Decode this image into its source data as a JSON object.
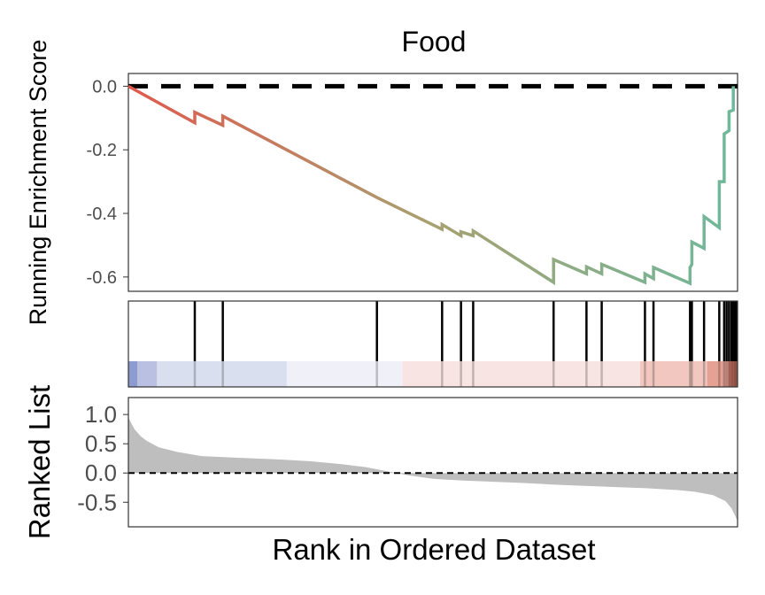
{
  "chart_data": {
    "type": "line",
    "title": "Food",
    "panels": {
      "enrichment": {
        "ylabel": "Running Enrichment Score",
        "ylim": [
          -0.645,
          0.04
        ],
        "yticks": [
          0.0,
          -0.2,
          -0.4,
          -0.6
        ],
        "ytick_labels": [
          "0.0",
          "-0.2",
          "-0.4",
          "-0.6"
        ],
        "reference_line_y": 0.0,
        "xlim": [
          0,
          1
        ],
        "series": [
          {
            "values": [
              [
                0.0,
                0.0
              ],
              [
                0.109,
                -0.115
              ],
              [
                0.109,
                -0.082
              ],
              [
                0.155,
                -0.123
              ],
              [
                0.155,
                -0.094
              ],
              [
                0.408,
                -0.35
              ],
              [
                0.515,
                -0.45
              ],
              [
                0.515,
                -0.435
              ],
              [
                0.546,
                -0.47
              ],
              [
                0.546,
                -0.458
              ],
              [
                0.566,
                -0.47
              ],
              [
                0.566,
                -0.455
              ],
              [
                0.698,
                -0.617
              ],
              [
                0.698,
                -0.545
              ],
              [
                0.752,
                -0.59
              ],
              [
                0.752,
                -0.568
              ],
              [
                0.777,
                -0.59
              ],
              [
                0.777,
                -0.56
              ],
              [
                0.848,
                -0.617
              ],
              [
                0.848,
                -0.59
              ],
              [
                0.862,
                -0.605
              ],
              [
                0.862,
                -0.57
              ],
              [
                0.922,
                -0.62
              ],
              [
                0.922,
                -0.57
              ],
              [
                0.925,
                -0.56
              ],
              [
                0.925,
                -0.49
              ],
              [
                0.945,
                -0.51
              ],
              [
                0.945,
                -0.41
              ],
              [
                0.97,
                -0.445
              ],
              [
                0.97,
                -0.3
              ],
              [
                0.978,
                -0.3
              ],
              [
                0.978,
                -0.15
              ],
              [
                0.986,
                -0.14
              ],
              [
                0.986,
                -0.08
              ],
              [
                0.993,
                -0.075
              ],
              [
                0.993,
                0.0
              ]
            ],
            "color_gradient": [
              "#e0594d",
              "#a8a070",
              "#6fb89b"
            ]
          }
        ]
      },
      "hits": {
        "positions": [
          0.109,
          0.155,
          0.408,
          0.515,
          0.546,
          0.566,
          0.698,
          0.752,
          0.777,
          0.848,
          0.862,
          0.922,
          0.925,
          0.945,
          0.97,
          0.978,
          0.982,
          0.986,
          0.99,
          0.993,
          0.996,
          0.998
        ],
        "rank_bands": [
          {
            "from": 0.0,
            "to": 0.015,
            "color": "#8e9bd0"
          },
          {
            "from": 0.015,
            "to": 0.047,
            "color": "#b9c0e2"
          },
          {
            "from": 0.047,
            "to": 0.26,
            "color": "#dadff0"
          },
          {
            "from": 0.26,
            "to": 0.45,
            "color": "#eff0f8"
          },
          {
            "from": 0.45,
            "to": 0.84,
            "color": "#f8e4e2"
          },
          {
            "from": 0.84,
            "to": 0.95,
            "color": "#f1c7bf"
          },
          {
            "from": 0.95,
            "to": 0.985,
            "color": "#e5a294"
          },
          {
            "from": 0.985,
            "to": 1.0,
            "color": "#cc7565"
          }
        ]
      },
      "ranked_list": {
        "ylabel": "Ranked List",
        "xlabel": "Rank in Ordered Dataset",
        "ylim": [
          -0.92,
          1.29
        ],
        "yticks": [
          1.0,
          0.5,
          0.0,
          -0.5
        ],
        "ytick_labels": [
          "1.0",
          "0.5",
          "0.0",
          "-0.5"
        ],
        "reference_line_y": 0.0,
        "fill_color": "#bebebe",
        "curve": [
          [
            0.0,
            0.95
          ],
          [
            0.005,
            0.85
          ],
          [
            0.01,
            0.75
          ],
          [
            0.02,
            0.63
          ],
          [
            0.03,
            0.55
          ],
          [
            0.05,
            0.44
          ],
          [
            0.08,
            0.36
          ],
          [
            0.12,
            0.29
          ],
          [
            0.18,
            0.26
          ],
          [
            0.25,
            0.23
          ],
          [
            0.3,
            0.2
          ],
          [
            0.35,
            0.15
          ],
          [
            0.39,
            0.1
          ],
          [
            0.42,
            0.04
          ],
          [
            0.44,
            0.0
          ],
          [
            0.46,
            -0.04
          ],
          [
            0.5,
            -0.1
          ],
          [
            0.55,
            -0.13
          ],
          [
            0.6,
            -0.15
          ],
          [
            0.65,
            -0.17
          ],
          [
            0.7,
            -0.2
          ],
          [
            0.75,
            -0.22
          ],
          [
            0.8,
            -0.24
          ],
          [
            0.85,
            -0.26
          ],
          [
            0.9,
            -0.29
          ],
          [
            0.93,
            -0.32
          ],
          [
            0.96,
            -0.38
          ],
          [
            0.98,
            -0.48
          ],
          [
            0.99,
            -0.6
          ],
          [
            1.0,
            -0.82
          ]
        ]
      }
    }
  }
}
